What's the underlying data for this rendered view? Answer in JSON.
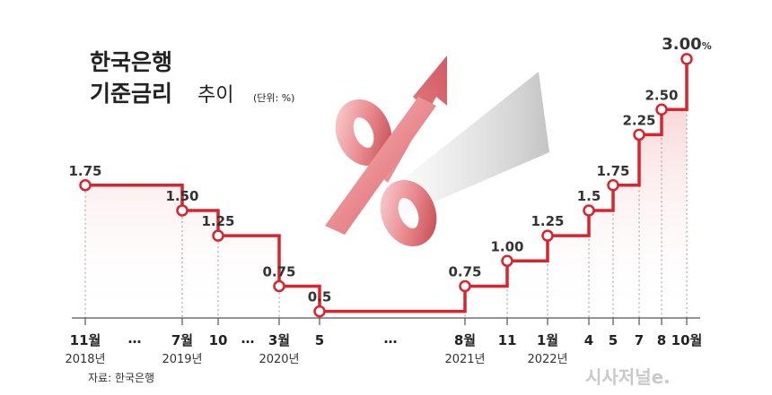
{
  "title": {
    "line1": "한국은행",
    "line2": "기준금리",
    "line2_light": "추이",
    "unit": "(단위: %)"
  },
  "source": "자료: 한국은행",
  "watermark": "시사저널e.",
  "colors": {
    "line": "#d9232d",
    "fill_top": "#f4b8ba",
    "fill_bottom": "#ffffff",
    "axis": "#555555",
    "marker_fill": "#ffffff",
    "last_label": "#d9232d"
  },
  "chart_data": {
    "type": "line",
    "step": true,
    "ylim": [
      0,
      3.0
    ],
    "points": [
      {
        "month": "11월",
        "year": "2018년",
        "value": 1.75,
        "label": "1.75"
      },
      {
        "month": "7월",
        "year": "2019년",
        "value": 1.5,
        "label": "1.50"
      },
      {
        "month": "10",
        "year": "",
        "value": 1.25,
        "label": "1.25"
      },
      {
        "month": "3월",
        "year": "2020년",
        "value": 0.75,
        "label": "0.75"
      },
      {
        "month": "5",
        "year": "",
        "value": 0.5,
        "label": "0.5"
      },
      {
        "month": "8월",
        "year": "2021년",
        "value": 0.75,
        "label": "0.75"
      },
      {
        "month": "11",
        "year": "",
        "value": 1.0,
        "label": "1.00"
      },
      {
        "month": "1월",
        "year": "2022년",
        "value": 1.25,
        "label": "1.25"
      },
      {
        "month": "4",
        "year": "",
        "value": 1.5,
        "label": "1.5"
      },
      {
        "month": "5",
        "year": "",
        "value": 1.75,
        "label": "1.75"
      },
      {
        "month": "7",
        "year": "",
        "value": 2.25,
        "label": "2.25"
      },
      {
        "month": "8",
        "year": "",
        "value": 2.5,
        "label": "2.50"
      },
      {
        "month": "10월",
        "year": "",
        "value": 3.0,
        "label": "3.00",
        "label_suffix": "%"
      }
    ],
    "ellipses": [
      "…",
      "…",
      "…"
    ]
  }
}
